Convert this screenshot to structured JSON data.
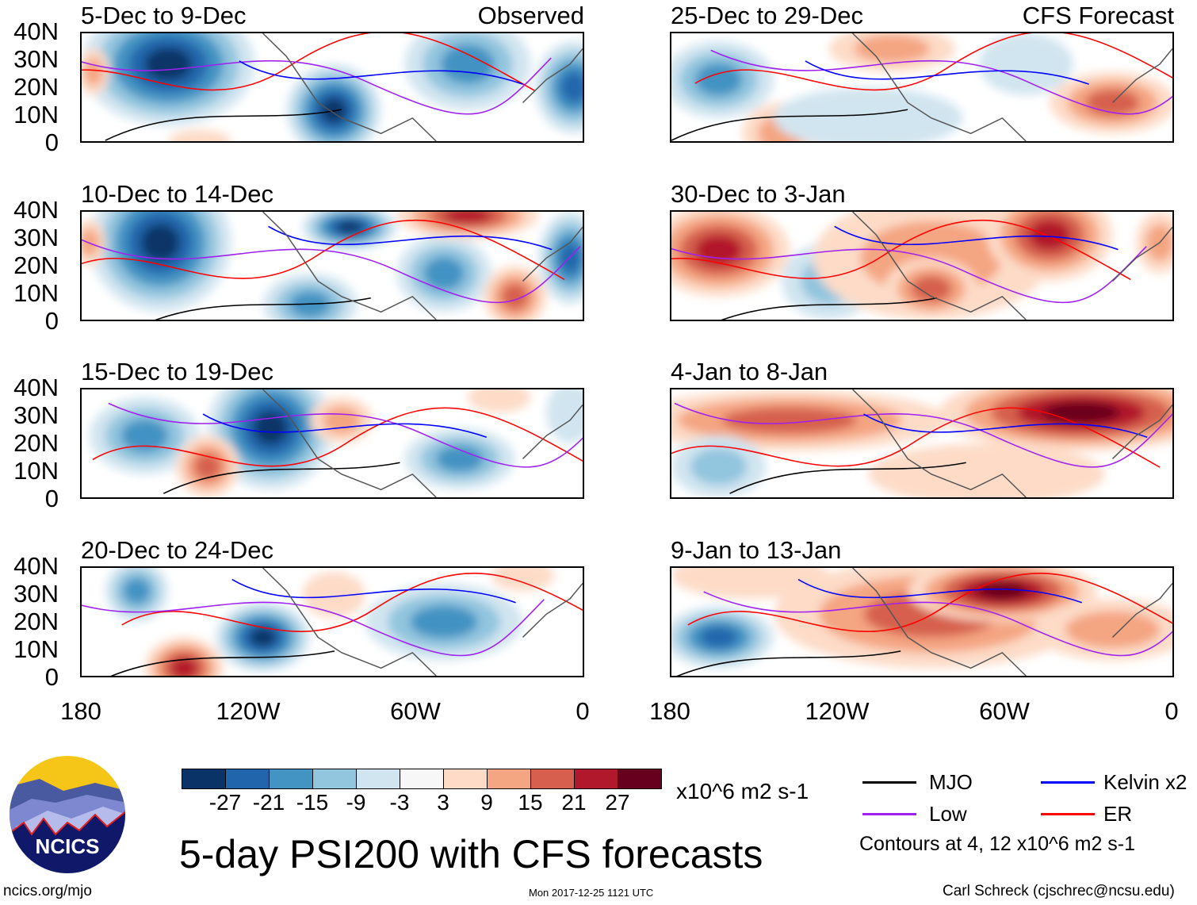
{
  "panels_left": [
    {
      "title": "5-Dec to 9-Dec",
      "tag": "Observed"
    },
    {
      "title": "10-Dec to 14-Dec"
    },
    {
      "title": "15-Dec to 19-Dec"
    },
    {
      "title": "20-Dec to 24-Dec"
    }
  ],
  "panels_right": [
    {
      "title": "25-Dec to 29-Dec",
      "tag": "CFS Forecast"
    },
    {
      "title": "30-Dec to 3-Jan"
    },
    {
      "title": "4-Jan to 8-Jan"
    },
    {
      "title": "9-Jan to 13-Jan"
    }
  ],
  "lat_labels": [
    "40N",
    "30N",
    "20N",
    "10N",
    "0"
  ],
  "lon_labels": [
    "180",
    "120W",
    "60W",
    "0"
  ],
  "colorbar": {
    "colors": [
      "#0a3467",
      "#2166ac",
      "#4393c3",
      "#92c5de",
      "#d1e5f0",
      "#f7f7f7",
      "#fddbc7",
      "#f4a582",
      "#d6604d",
      "#b2182b",
      "#67001f"
    ],
    "labels": [
      "-27",
      "-21",
      "-15",
      "-9",
      "-3",
      "3",
      "9",
      "15",
      "21",
      "27"
    ],
    "units": "x10^6 m2 s-1"
  },
  "legend": {
    "items": [
      {
        "label": "MJO",
        "color": "#000000"
      },
      {
        "label": "Kelvin x2",
        "color": "#0000ff"
      },
      {
        "label": "Low",
        "color": "#a020f0"
      },
      {
        "label": "ER",
        "color": "#ff0000"
      }
    ],
    "note": "Contours at 4, 12 x10^6 m2 s-1"
  },
  "title": "5-day PSI200 with CFS forecasts",
  "logo": "NCICS",
  "footer": {
    "url": "ncics.org/mjo",
    "timestamp": "Mon 2017-12-25 1121 UTC",
    "credit": "Carl Schreck (cjschrec@ncsu.edu)"
  }
}
